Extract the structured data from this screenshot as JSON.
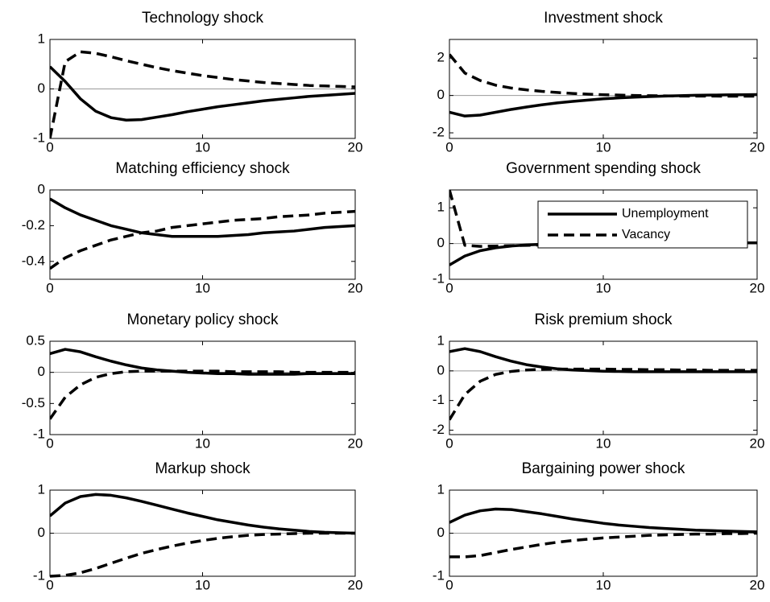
{
  "chart_data": [
    {
      "type": "line",
      "title": "Technology shock",
      "x": [
        0,
        1,
        2,
        3,
        4,
        5,
        6,
        7,
        8,
        9,
        10,
        11,
        12,
        13,
        14,
        15,
        16,
        17,
        18,
        19,
        20
      ],
      "xlim": [
        0,
        20
      ],
      "xticks": [
        0,
        10,
        20
      ],
      "ylim": [
        -1,
        1
      ],
      "yticks": [
        -1,
        0,
        1
      ],
      "series": [
        {
          "color": "#000000",
          "style": "solid",
          "values": [
            0.45,
            0.15,
            -0.2,
            -0.45,
            -0.58,
            -0.63,
            -0.62,
            -0.57,
            -0.52,
            -0.46,
            -0.41,
            -0.36,
            -0.32,
            -0.28,
            -0.24,
            -0.21,
            -0.18,
            -0.15,
            -0.13,
            -0.11,
            -0.09
          ]
        },
        {
          "color": "#000000",
          "style": "dashed",
          "values": [
            -1,
            0.55,
            0.75,
            0.72,
            0.65,
            0.57,
            0.5,
            0.43,
            0.37,
            0.32,
            0.27,
            0.23,
            0.19,
            0.16,
            0.13,
            0.11,
            0.09,
            0.07,
            0.06,
            0.05,
            0.04
          ]
        }
      ]
    },
    {
      "type": "line",
      "title": "Investment shock",
      "x": [
        0,
        1,
        2,
        3,
        4,
        5,
        6,
        7,
        8,
        9,
        10,
        11,
        12,
        13,
        14,
        15,
        16,
        17,
        18,
        19,
        20
      ],
      "xlim": [
        0,
        20
      ],
      "xticks": [
        0,
        10,
        20
      ],
      "ylim": [
        -2.3,
        3
      ],
      "yticks": [
        -2,
        0,
        2
      ],
      "series": [
        {
          "color": "#000000",
          "style": "solid",
          "values": [
            -0.9,
            -1.1,
            -1.05,
            -0.9,
            -0.75,
            -0.62,
            -0.5,
            -0.4,
            -0.32,
            -0.25,
            -0.18,
            -0.13,
            -0.09,
            -0.06,
            -0.03,
            -0.01,
            0.01,
            0.02,
            0.03,
            0.04,
            0.05
          ]
        },
        {
          "color": "#000000",
          "style": "dashed",
          "values": [
            2.2,
            1.2,
            0.8,
            0.55,
            0.4,
            0.3,
            0.22,
            0.16,
            0.11,
            0.07,
            0.04,
            0.02,
            0,
            -0.01,
            -0.02,
            -0.03,
            -0.03,
            -0.03,
            -0.04,
            -0.04,
            -0.04
          ]
        }
      ]
    },
    {
      "type": "line",
      "title": "Matching efficiency shock",
      "x": [
        0,
        1,
        2,
        3,
        4,
        5,
        6,
        7,
        8,
        9,
        10,
        11,
        12,
        13,
        14,
        15,
        16,
        17,
        18,
        19,
        20
      ],
      "xlim": [
        0,
        20
      ],
      "xticks": [
        0,
        10,
        20
      ],
      "ylim": [
        -0.5,
        0
      ],
      "yticks": [
        -0.4,
        -0.2,
        0
      ],
      "series": [
        {
          "color": "#000000",
          "style": "solid",
          "values": [
            -0.05,
            -0.1,
            -0.14,
            -0.17,
            -0.2,
            -0.22,
            -0.24,
            -0.25,
            -0.26,
            -0.26,
            -0.26,
            -0.26,
            -0.255,
            -0.25,
            -0.24,
            -0.235,
            -0.23,
            -0.22,
            -0.21,
            -0.205,
            -0.2
          ]
        },
        {
          "color": "#000000",
          "style": "dashed",
          "values": [
            -0.44,
            -0.38,
            -0.34,
            -0.31,
            -0.28,
            -0.26,
            -0.24,
            -0.23,
            -0.21,
            -0.2,
            -0.19,
            -0.18,
            -0.17,
            -0.165,
            -0.16,
            -0.15,
            -0.145,
            -0.14,
            -0.13,
            -0.125,
            -0.12
          ]
        }
      ]
    },
    {
      "type": "line",
      "title": "Government spending shock",
      "x": [
        0,
        1,
        2,
        3,
        4,
        5,
        6,
        7,
        8,
        9,
        10,
        11,
        12,
        13,
        14,
        15,
        16,
        17,
        18,
        19,
        20
      ],
      "xlim": [
        0,
        20
      ],
      "xticks": [
        0,
        10,
        20
      ],
      "ylim": [
        -1,
        1.5
      ],
      "yticks": [
        -1,
        0,
        1
      ],
      "legend": "upper right",
      "series": [
        {
          "name": "Unemployment",
          "color": "#000000",
          "style": "solid",
          "values": [
            -0.6,
            -0.35,
            -0.2,
            -0.12,
            -0.07,
            -0.04,
            -0.02,
            -0.01,
            0,
            0,
            0.01,
            0.01,
            0.01,
            0.01,
            0.02,
            0.02,
            0.02,
            0.02,
            0.02,
            0.02,
            0.02
          ]
        },
        {
          "name": "Vacancy",
          "color": "#000000",
          "style": "dashed",
          "values": [
            1.5,
            -0.05,
            -0.08,
            -0.07,
            -0.06,
            -0.05,
            -0.04,
            -0.03,
            -0.02,
            -0.01,
            0,
            0,
            0.01,
            0.01,
            0.01,
            0.02,
            0.02,
            0.02,
            0.02,
            0.02,
            0.02
          ]
        }
      ]
    },
    {
      "type": "line",
      "title": "Monetary policy shock",
      "x": [
        0,
        1,
        2,
        3,
        4,
        5,
        6,
        7,
        8,
        9,
        10,
        11,
        12,
        13,
        14,
        15,
        16,
        17,
        18,
        19,
        20
      ],
      "xlim": [
        0,
        20
      ],
      "xticks": [
        0,
        10,
        20
      ],
      "ylim": [
        -1,
        0.5
      ],
      "yticks": [
        -1,
        -0.5,
        0,
        0.5
      ],
      "series": [
        {
          "color": "#000000",
          "style": "solid",
          "values": [
            0.3,
            0.37,
            0.33,
            0.25,
            0.18,
            0.12,
            0.07,
            0.04,
            0.02,
            0,
            -0.01,
            -0.02,
            -0.02,
            -0.03,
            -0.03,
            -0.03,
            -0.03,
            -0.02,
            -0.02,
            -0.02,
            -0.02
          ]
        },
        {
          "color": "#000000",
          "style": "dashed",
          "values": [
            -0.75,
            -0.4,
            -0.2,
            -0.08,
            -0.02,
            0.01,
            0.02,
            0.02,
            0.02,
            0.02,
            0.02,
            0.02,
            0.01,
            0.01,
            0.01,
            0.01,
            0,
            0,
            0,
            0,
            0
          ]
        }
      ]
    },
    {
      "type": "line",
      "title": "Risk premium shock",
      "x": [
        0,
        1,
        2,
        3,
        4,
        5,
        6,
        7,
        8,
        9,
        10,
        11,
        12,
        13,
        14,
        15,
        16,
        17,
        18,
        19,
        20
      ],
      "xlim": [
        0,
        20
      ],
      "xticks": [
        0,
        10,
        20
      ],
      "ylim": [
        -2.15,
        1
      ],
      "yticks": [
        -2,
        -1,
        0,
        1
      ],
      "series": [
        {
          "color": "#000000",
          "style": "solid",
          "values": [
            0.65,
            0.75,
            0.65,
            0.48,
            0.33,
            0.21,
            0.13,
            0.07,
            0.03,
            0.01,
            -0.01,
            -0.02,
            -0.03,
            -0.03,
            -0.03,
            -0.03,
            -0.03,
            -0.03,
            -0.03,
            -0.03,
            -0.03
          ]
        },
        {
          "color": "#000000",
          "style": "dashed",
          "values": [
            -1.65,
            -0.8,
            -0.35,
            -0.12,
            -0.02,
            0.03,
            0.05,
            0.06,
            0.06,
            0.06,
            0.06,
            0.05,
            0.05,
            0.04,
            0.04,
            0.03,
            0.03,
            0.02,
            0.02,
            0.02,
            0.02
          ]
        }
      ]
    },
    {
      "type": "line",
      "title": "Markup shock",
      "x": [
        0,
        1,
        2,
        3,
        4,
        5,
        6,
        7,
        8,
        9,
        10,
        11,
        12,
        13,
        14,
        15,
        16,
        17,
        18,
        19,
        20
      ],
      "xlim": [
        0,
        20
      ],
      "xticks": [
        0,
        10,
        20
      ],
      "ylim": [
        -1,
        1
      ],
      "yticks": [
        -1,
        0,
        1
      ],
      "series": [
        {
          "color": "#000000",
          "style": "solid",
          "values": [
            0.4,
            0.7,
            0.85,
            0.9,
            0.88,
            0.82,
            0.74,
            0.65,
            0.56,
            0.47,
            0.39,
            0.31,
            0.25,
            0.19,
            0.14,
            0.1,
            0.07,
            0.04,
            0.02,
            0.01,
            0
          ]
        },
        {
          "color": "#000000",
          "style": "dashed",
          "values": [
            -1,
            -0.98,
            -0.92,
            -0.82,
            -0.7,
            -0.58,
            -0.47,
            -0.38,
            -0.3,
            -0.23,
            -0.17,
            -0.12,
            -0.08,
            -0.05,
            -0.03,
            -0.02,
            -0.01,
            0,
            0,
            0,
            0
          ]
        }
      ]
    },
    {
      "type": "line",
      "title": "Bargaining power shock",
      "x": [
        0,
        1,
        2,
        3,
        4,
        5,
        6,
        7,
        8,
        9,
        10,
        11,
        12,
        13,
        14,
        15,
        16,
        17,
        18,
        19,
        20
      ],
      "xlim": [
        0,
        20
      ],
      "xticks": [
        0,
        10,
        20
      ],
      "ylim": [
        -1,
        1
      ],
      "yticks": [
        -1,
        0,
        1
      ],
      "series": [
        {
          "color": "#000000",
          "style": "solid",
          "values": [
            0.25,
            0.42,
            0.52,
            0.56,
            0.55,
            0.5,
            0.45,
            0.39,
            0.33,
            0.28,
            0.23,
            0.19,
            0.16,
            0.13,
            0.11,
            0.09,
            0.07,
            0.06,
            0.05,
            0.04,
            0.03
          ]
        },
        {
          "color": "#000000",
          "style": "dashed",
          "values": [
            -0.55,
            -0.55,
            -0.52,
            -0.45,
            -0.38,
            -0.32,
            -0.26,
            -0.21,
            -0.17,
            -0.14,
            -0.11,
            -0.09,
            -0.07,
            -0.05,
            -0.04,
            -0.03,
            -0.02,
            -0.02,
            -0.01,
            -0.01,
            0
          ]
        }
      ]
    }
  ]
}
